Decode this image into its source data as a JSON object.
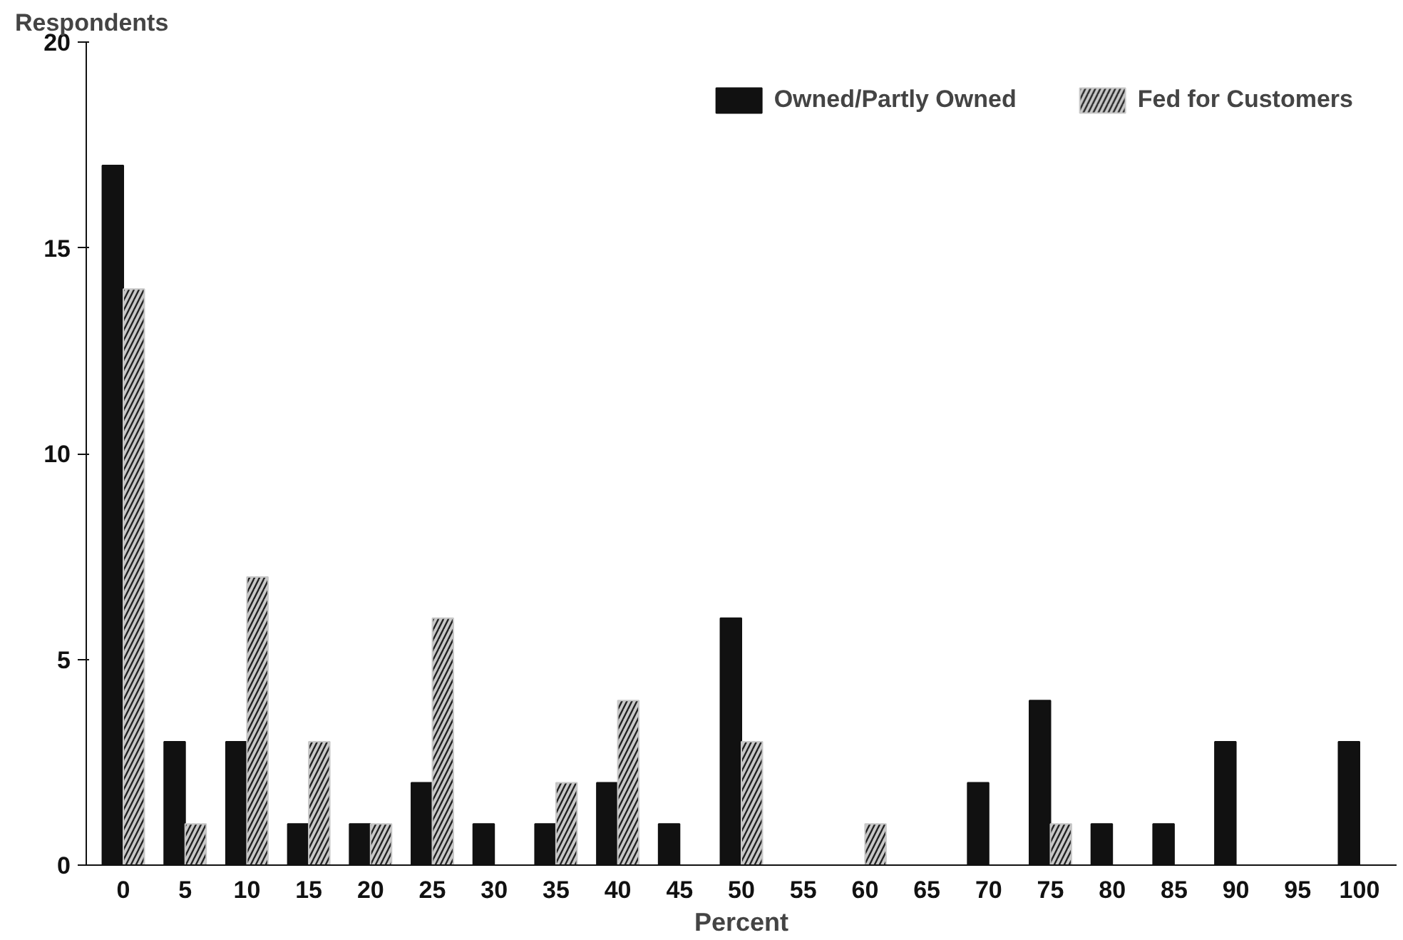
{
  "chart_data": {
    "type": "bar",
    "xlabel": "Percent",
    "ylabel": "Respondents",
    "categories": [
      "0",
      "5",
      "10",
      "15",
      "20",
      "25",
      "30",
      "35",
      "40",
      "45",
      "50",
      "55",
      "60",
      "65",
      "70",
      "75",
      "80",
      "85",
      "90",
      "95",
      "100"
    ],
    "series": [
      {
        "name": "Owned/Partly Owned",
        "color": "#111111",
        "values": [
          17,
          3,
          3,
          1,
          1,
          2,
          1,
          1,
          2,
          1,
          6,
          0,
          0,
          0,
          2,
          4,
          1,
          1,
          3,
          0,
          3
        ]
      },
      {
        "name": "Fed for Customers",
        "color": "#c8c8c8",
        "values": [
          14,
          1,
          7,
          3,
          1,
          6,
          0,
          2,
          4,
          0,
          3,
          0,
          1,
          0,
          0,
          1,
          0,
          0,
          0,
          0,
          0
        ]
      }
    ],
    "ylim": [
      0,
      20
    ],
    "yticks": [
      0,
      5,
      10,
      15,
      20
    ],
    "grid": false,
    "legend": "top right"
  }
}
